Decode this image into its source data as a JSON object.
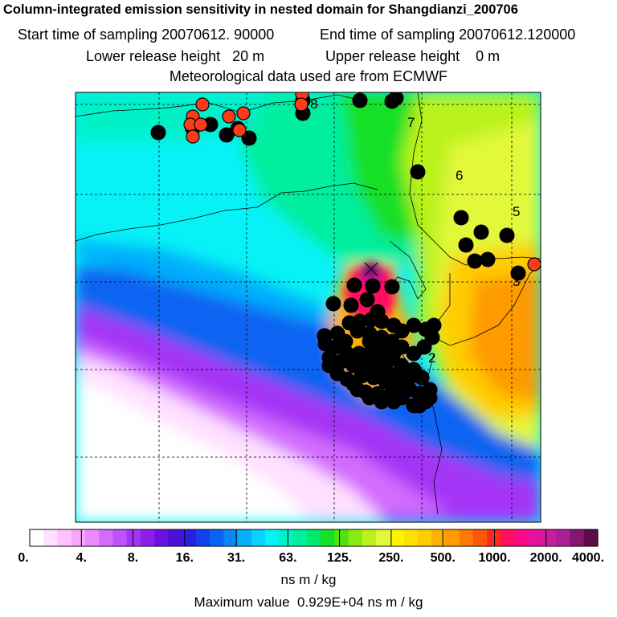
{
  "chart_data": {
    "type": "heatmap",
    "title": "Column-integrated emission sensitivity in nested domain for Shangdianzi_200706",
    "subtitle": {
      "start_label": "Start time of sampling",
      "start_value": "20070612. 90000",
      "end_label": "End time of sampling",
      "end_value": "20070612.120000",
      "lower_label": "Lower release height",
      "lower_value": "20 m",
      "upper_label": "Upper release height",
      "upper_value": "0 m",
      "met": "Meteorological data used are from ECMWF"
    },
    "colorbar": {
      "ticks": [
        "0.",
        "4.",
        "8.",
        "16.",
        "31.",
        "63.",
        "125.",
        "250.",
        "500.",
        "1000.",
        "2000.",
        "4000."
      ],
      "unit": "ns m / kg",
      "colors": [
        "#ffffff",
        "#ffe0ff",
        "#ffc2ff",
        "#f9a6ff",
        "#e88cff",
        "#d36cff",
        "#bd52ff",
        "#a434f6",
        "#8c1ee8",
        "#6a10e0",
        "#4a10d8",
        "#2c20e0",
        "#1440ec",
        "#0864f2",
        "#0488f8",
        "#06aefc",
        "#08d2fe",
        "#06f2f6",
        "#00f0c8",
        "#00ee9e",
        "#00ea6a",
        "#16e028",
        "#4ee40e",
        "#88ec10",
        "#baf21c",
        "#e2f83a",
        "#fff400",
        "#ffe200",
        "#ffcc00",
        "#ffb000",
        "#ff9a00",
        "#ff7a00",
        "#ff5608",
        "#ff2a1c",
        "#ff1060",
        "#fa0a8a",
        "#e8109e",
        "#cc1c9e",
        "#aa1e96",
        "#84186e",
        "#5c0c4a"
      ]
    },
    "contour_labels": [
      "2",
      "3",
      "5",
      "6",
      "7",
      "8"
    ],
    "max_value_label": "Maximum value",
    "max_value": "0.929E+04 ns m / kg",
    "grid": true,
    "colors": {
      "marker_black": "#000000",
      "marker_red": "#ff3a1a",
      "release_site": "#330033"
    }
  }
}
